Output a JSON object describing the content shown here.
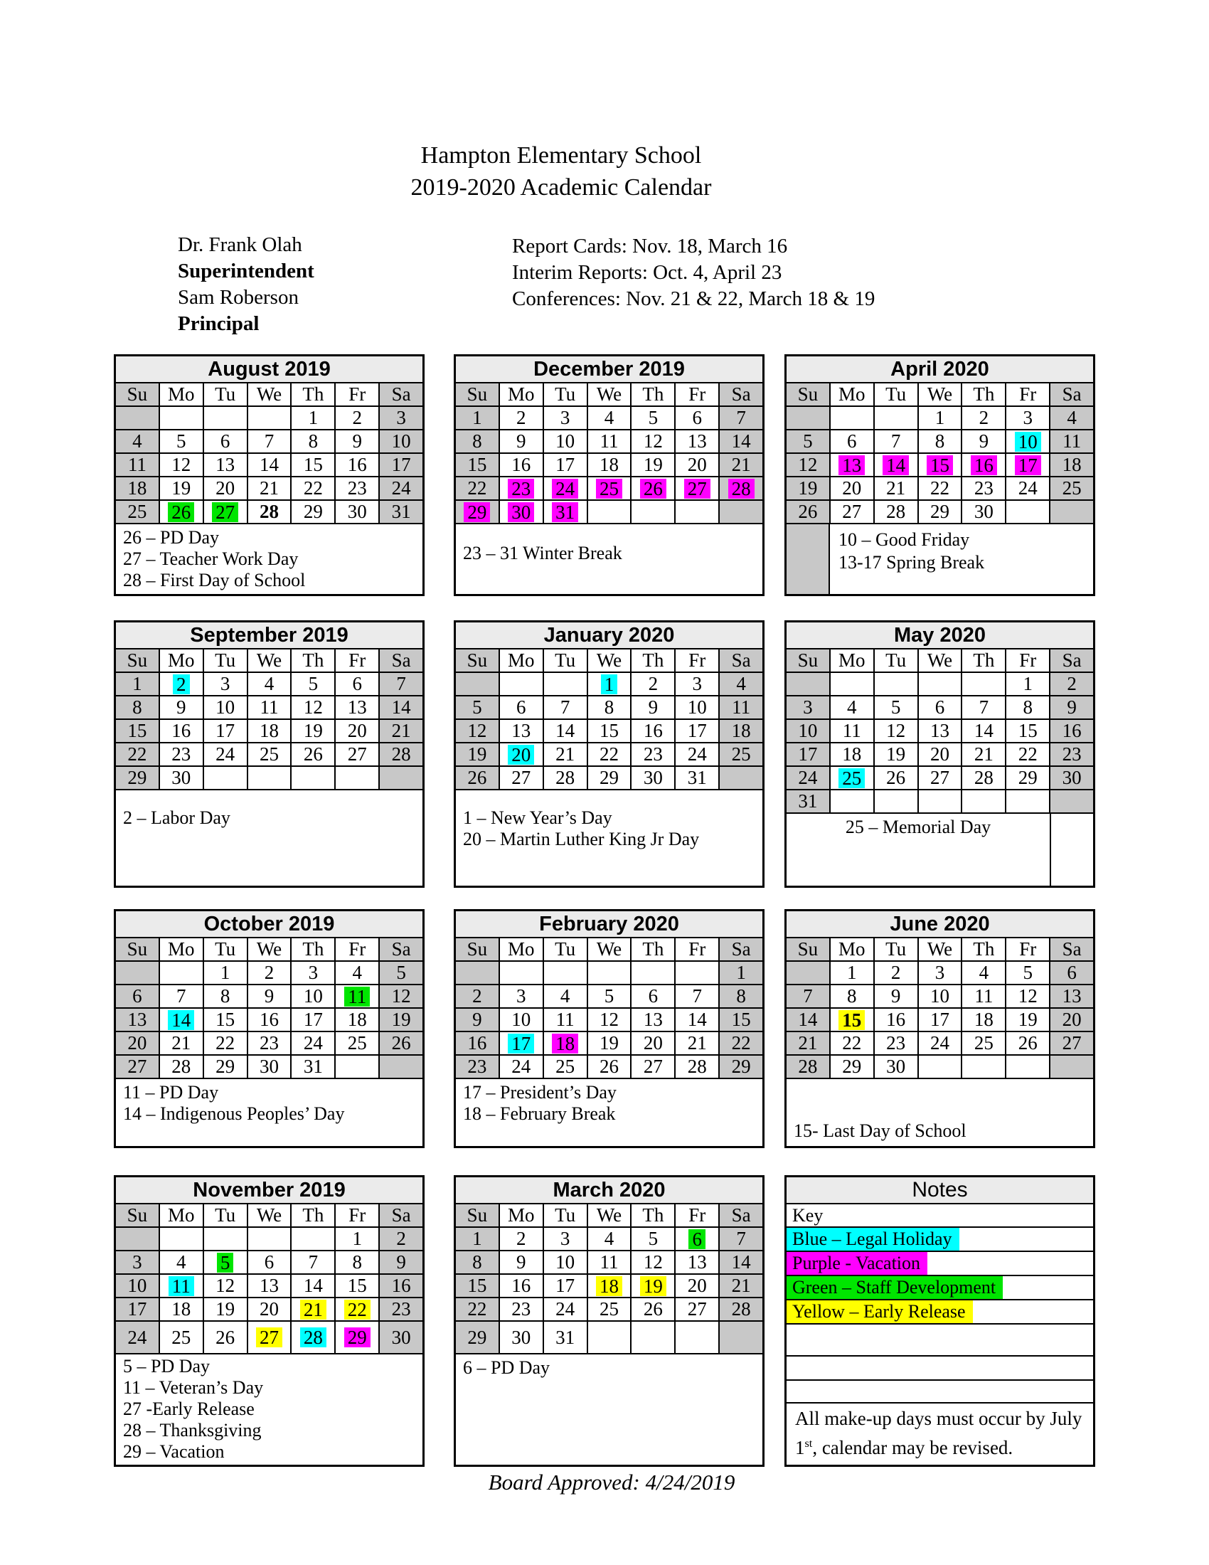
{
  "page": {
    "school_name": "Hampton Elementary School",
    "title": "2019-2020 Academic Calendar",
    "staff_lines": [
      {
        "text": "Dr. Frank Olah",
        "style": "regular"
      },
      {
        "text": "Superintendent",
        "style": "bold"
      },
      {
        "text": "Sam Roberson",
        "style": "regular"
      },
      {
        "text": "Principal",
        "style": "bold"
      }
    ],
    "info_lines": [
      "Report Cards: Nov. 18, March 16",
      "Interim Reports:  Oct. 4, April 23",
      "Conferences:  Nov. 21 & 22, March 18 & 19"
    ],
    "board_approved": "Board Approved: 4/24/2019"
  },
  "key_colors": {
    "cyan": "#00FFFF",
    "magenta": "#FF00FF",
    "green": "#00E500",
    "yellow": "#FFFF00"
  },
  "weekend_color": "#C8C8C8",
  "title_bar_color": "#EBEBEB",
  "day_headers": [
    "Su",
    "Mo",
    "Tu",
    "We",
    "Th",
    "Fr",
    "Sa"
  ],
  "months": [
    {
      "name": "August 2019",
      "weeks": [
        [
          "",
          "",
          "",
          "",
          "1",
          "2",
          "3"
        ],
        [
          "4",
          "5",
          "6",
          "7",
          "8",
          "9",
          "10"
        ],
        [
          "11",
          "12",
          "13",
          "14",
          "15",
          "16",
          "17"
        ],
        [
          "18",
          "19",
          "20",
          "21",
          "22",
          "23",
          "24"
        ],
        [
          "25",
          "26",
          "27",
          "28",
          "29",
          "30",
          "31"
        ]
      ],
      "highlights": {
        "26": "green",
        "27": "green"
      },
      "bold_days": [
        "28"
      ],
      "notes": [
        "26 – PD Day",
        "27 – Teacher Work Day",
        "28 – First Day of School"
      ]
    },
    {
      "name": "December 2019",
      "weeks": [
        [
          "1",
          "2",
          "3",
          "4",
          "5",
          "6",
          "7"
        ],
        [
          "8",
          "9",
          "10",
          "11",
          "12",
          "13",
          "14"
        ],
        [
          "15",
          "16",
          "17",
          "18",
          "19",
          "20",
          "21"
        ],
        [
          "22",
          "23",
          "24",
          "25",
          "26",
          "27",
          "28"
        ],
        [
          "29",
          "30",
          "31",
          "",
          "",
          "",
          ""
        ]
      ],
      "highlights": {
        "23": "magenta",
        "24": "magenta",
        "25": "magenta",
        "26": "magenta",
        "27": "magenta",
        "28": "magenta",
        "29": "magenta",
        "30": "magenta",
        "31": "magenta"
      },
      "bold_days": [],
      "notes": [
        "23 – 31 Winter Break"
      ]
    },
    {
      "name": "April 2020",
      "weeks": [
        [
          "",
          "",
          "",
          "1",
          "2",
          "3",
          "4"
        ],
        [
          "5",
          "6",
          "7",
          "8",
          "9",
          "10",
          "11"
        ],
        [
          "12",
          "13",
          "14",
          "15",
          "16",
          "17",
          "18"
        ],
        [
          "19",
          "20",
          "21",
          "22",
          "23",
          "24",
          "25"
        ],
        [
          "26",
          "27",
          "28",
          "29",
          "30",
          "",
          ""
        ]
      ],
      "highlights": {
        "10": "cyan",
        "13": "magenta",
        "14": "magenta",
        "15": "magenta",
        "16": "magenta",
        "17": "magenta"
      },
      "bold_days": [],
      "notes": [
        "10 – Good Friday",
        "13-17 Spring Break"
      ]
    },
    {
      "name": "September 2019",
      "weeks": [
        [
          "1",
          "2",
          "3",
          "4",
          "5",
          "6",
          "7"
        ],
        [
          "8",
          "9",
          "10",
          "11",
          "12",
          "13",
          "14"
        ],
        [
          "15",
          "16",
          "17",
          "18",
          "19",
          "20",
          "21"
        ],
        [
          "22",
          "23",
          "24",
          "25",
          "26",
          "27",
          "28"
        ],
        [
          "29",
          "30",
          "",
          "",
          "",
          "",
          ""
        ]
      ],
      "highlights": {
        "2": "cyan"
      },
      "bold_days": [],
      "notes": [
        "2 – Labor Day"
      ]
    },
    {
      "name": "January 2020",
      "weeks": [
        [
          "",
          "",
          "",
          "1",
          "2",
          "3",
          "4"
        ],
        [
          "5",
          "6",
          "7",
          "8",
          "9",
          "10",
          "11"
        ],
        [
          "12",
          "13",
          "14",
          "15",
          "16",
          "17",
          "18"
        ],
        [
          "19",
          "20",
          "21",
          "22",
          "23",
          "24",
          "25"
        ],
        [
          "26",
          "27",
          "28",
          "29",
          "30",
          "31",
          ""
        ]
      ],
      "highlights": {
        "1": "cyan",
        "20": "cyan"
      },
      "bold_days": [],
      "notes": [
        "1 – New Year’s Day",
        "20 – Martin Luther King Jr Day"
      ]
    },
    {
      "name": "May 2020",
      "weeks": [
        [
          "",
          "",
          "",
          "",
          "",
          "1",
          "2"
        ],
        [
          "3",
          "4",
          "5",
          "6",
          "7",
          "8",
          "9"
        ],
        [
          "10",
          "11",
          "12",
          "13",
          "14",
          "15",
          "16"
        ],
        [
          "17",
          "18",
          "19",
          "20",
          "21",
          "22",
          "23"
        ],
        [
          "24",
          "25",
          "26",
          "27",
          "28",
          "29",
          "30"
        ],
        [
          "31",
          "",
          "",
          "",
          "",
          "",
          ""
        ]
      ],
      "highlights": {
        "25": "cyan"
      },
      "bold_days": [],
      "notes": [
        "25 – Memorial Day"
      ]
    },
    {
      "name": "October 2019",
      "weeks": [
        [
          "",
          "",
          "1",
          "2",
          "3",
          "4",
          "5"
        ],
        [
          "6",
          "7",
          "8",
          "9",
          "10",
          "11",
          "12"
        ],
        [
          "13",
          "14",
          "15",
          "16",
          "17",
          "18",
          "19"
        ],
        [
          "20",
          "21",
          "22",
          "23",
          "24",
          "25",
          "26"
        ],
        [
          "27",
          "28",
          "29",
          "30",
          "31",
          "",
          ""
        ]
      ],
      "highlights": {
        "11": "green",
        "14": "cyan"
      },
      "bold_days": [],
      "notes": [
        "11 – PD Day",
        "14 – Indigenous Peoples’ Day"
      ]
    },
    {
      "name": "February 2020",
      "weeks": [
        [
          "",
          "",
          "",
          "",
          "",
          "",
          "1"
        ],
        [
          "2",
          "3",
          "4",
          "5",
          "6",
          "7",
          "8"
        ],
        [
          "9",
          "10",
          "11",
          "12",
          "13",
          "14",
          "15"
        ],
        [
          "16",
          "17",
          "18",
          "19",
          "20",
          "21",
          "22"
        ],
        [
          "23",
          "24",
          "25",
          "26",
          "27",
          "28",
          "29"
        ]
      ],
      "highlights": {
        "17": "cyan",
        "18": "magenta"
      },
      "bold_days": [],
      "notes": [
        "17 – President’s Day",
        "18 – February Break"
      ]
    },
    {
      "name": "June 2020",
      "weeks": [
        [
          "",
          "1",
          "2",
          "3",
          "4",
          "5",
          "6"
        ],
        [
          "7",
          "8",
          "9",
          "10",
          "11",
          "12",
          "13"
        ],
        [
          "14",
          "15",
          "16",
          "17",
          "18",
          "19",
          "20"
        ],
        [
          "21",
          "22",
          "23",
          "24",
          "25",
          "26",
          "27"
        ],
        [
          "28",
          "29",
          "30",
          "",
          "",
          "",
          ""
        ]
      ],
      "highlights": {
        "15": "yellow"
      },
      "bold_days": [
        "15"
      ],
      "notes": [
        "15- Last Day of School"
      ]
    },
    {
      "name": "November 2019",
      "weeks": [
        [
          "",
          "",
          "",
          "",
          "",
          "1",
          "2"
        ],
        [
          "3",
          "4",
          "5",
          "6",
          "7",
          "8",
          "9"
        ],
        [
          "10",
          "11",
          "12",
          "13",
          "14",
          "15",
          "16"
        ],
        [
          "17",
          "18",
          "19",
          "20",
          "21",
          "22",
          "23"
        ],
        [
          "24",
          "25",
          "26",
          "27",
          "28",
          "29",
          "30"
        ]
      ],
      "highlights": {
        "5": "green",
        "11": "cyan",
        "21": "yellow",
        "22": "yellow",
        "27": "yellow",
        "28": "cyan",
        "29": "magenta"
      },
      "bold_days": [],
      "notes": [
        "5 – PD Day",
        "11 – Veteran’s Day",
        "27 -Early Release",
        "28 – Thanksgiving",
        "29 – Vacation"
      ]
    },
    {
      "name": "March 2020",
      "weeks": [
        [
          "1",
          "2",
          "3",
          "4",
          "5",
          "6",
          "7"
        ],
        [
          "8",
          "9",
          "10",
          "11",
          "12",
          "13",
          "14"
        ],
        [
          "15",
          "16",
          "17",
          "18",
          "19",
          "20",
          "21"
        ],
        [
          "22",
          "23",
          "24",
          "25",
          "26",
          "27",
          "28"
        ],
        [
          "29",
          "30",
          "31",
          "",
          "",
          "",
          ""
        ]
      ],
      "highlights": {
        "6": "green",
        "18": "yellow",
        "19": "yellow"
      },
      "bold_days": [],
      "notes": [
        "6 – PD Day"
      ]
    }
  ],
  "notes_panel": {
    "title": "Notes",
    "rows": [
      {
        "label": "Key",
        "highlight": ""
      },
      {
        "label": "Blue – Legal Holiday",
        "highlight": "cyan"
      },
      {
        "label": "Purple - Vacation",
        "highlight": "magenta"
      },
      {
        "label": "Green – Staff Development",
        "highlight": "green"
      },
      {
        "label": "Yellow – Early Release",
        "highlight": "yellow"
      },
      {
        "label": "",
        "highlight": ""
      },
      {
        "label": "",
        "highlight": ""
      },
      {
        "label": "",
        "highlight": ""
      }
    ],
    "footer": {
      "pre": "All make-up days must occur by July 1",
      "sup": "st",
      "post": ", calendar may be revised."
    }
  }
}
